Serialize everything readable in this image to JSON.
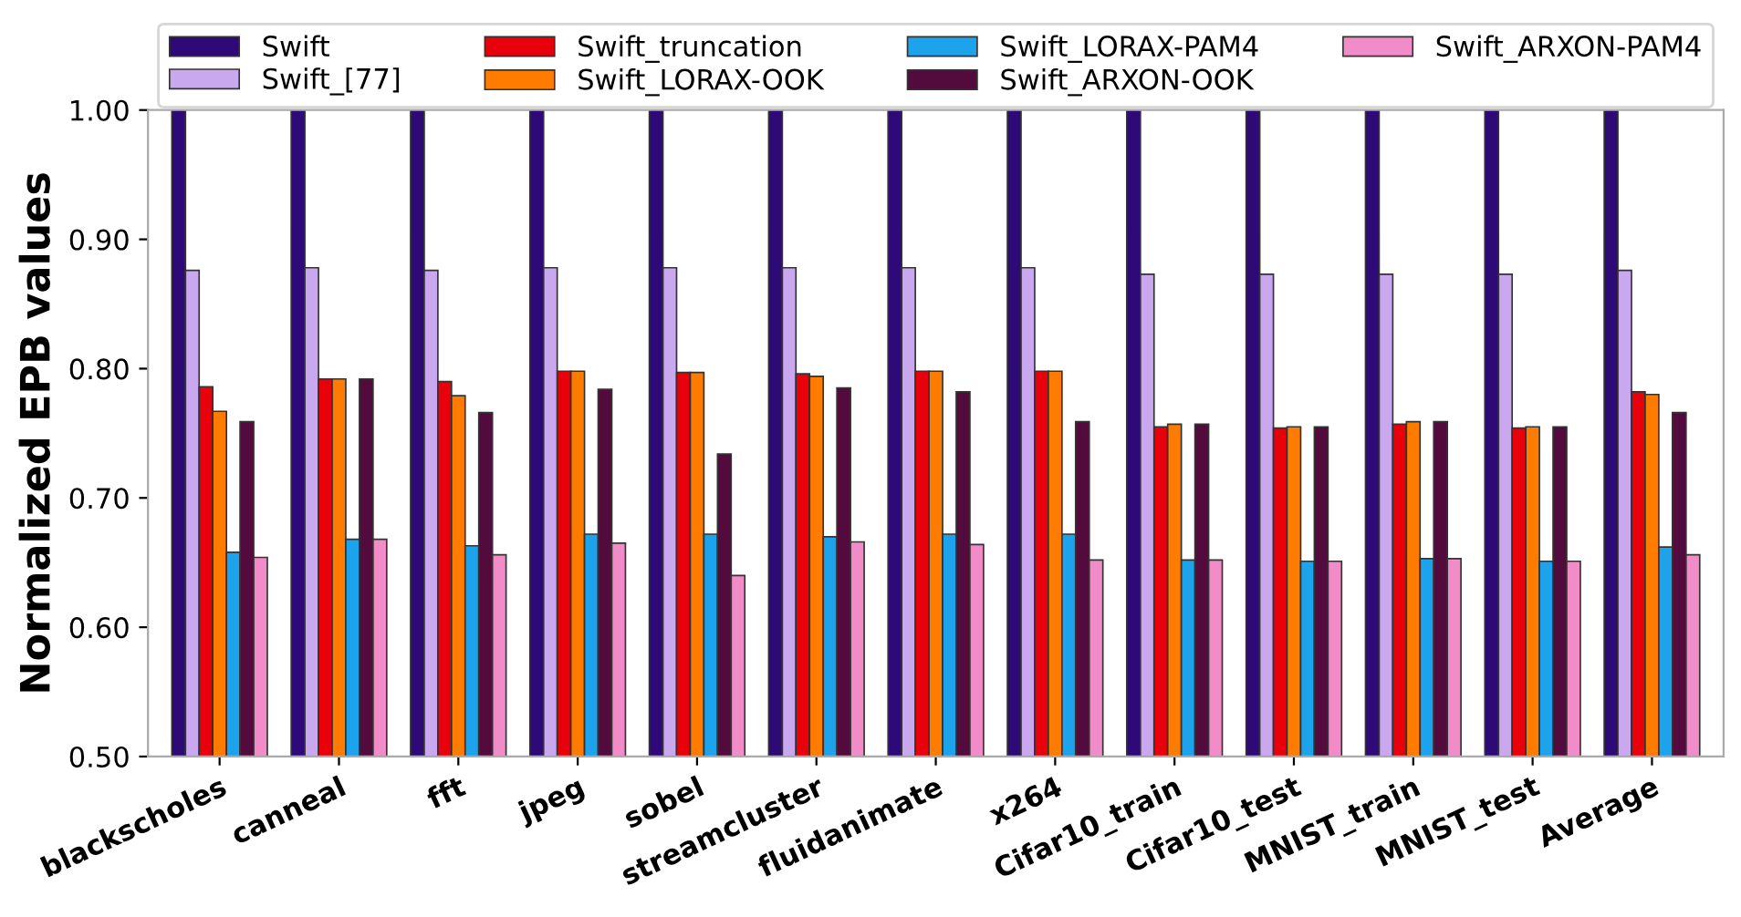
{
  "chart_data": {
    "type": "bar",
    "ylabel": "Normalized EPB values",
    "categories": [
      "blackscholes",
      "canneal",
      "fft",
      "jpeg",
      "sobel",
      "streamcluster",
      "fluidanimate",
      "x264",
      "Cifar10_train",
      "Cifar10_test",
      "MNIST_train",
      "MNIST_test",
      "Average"
    ],
    "series": [
      {
        "name": "Swift",
        "color": "#2e0a78",
        "values": [
          1.0,
          1.0,
          1.0,
          1.0,
          1.0,
          1.0,
          1.0,
          1.0,
          1.0,
          1.0,
          1.0,
          1.0,
          1.0
        ]
      },
      {
        "name": "Swift_[77]",
        "color": "#c9a8f0",
        "values": [
          0.876,
          0.878,
          0.876,
          0.878,
          0.878,
          0.878,
          0.878,
          0.878,
          0.873,
          0.873,
          0.873,
          0.873,
          0.876
        ]
      },
      {
        "name": "Swift_truncation",
        "color": "#e8000b",
        "values": [
          0.786,
          0.792,
          0.79,
          0.798,
          0.797,
          0.796,
          0.798,
          0.798,
          0.755,
          0.754,
          0.757,
          0.754,
          0.782
        ]
      },
      {
        "name": "Swift_LORAX-OOK",
        "color": "#ff7c00",
        "values": [
          0.767,
          0.792,
          0.779,
          0.798,
          0.797,
          0.794,
          0.798,
          0.798,
          0.757,
          0.755,
          0.759,
          0.755,
          0.78
        ]
      },
      {
        "name": "Swift_LORAX-PAM4",
        "color": "#1ca3ec",
        "values": [
          0.658,
          0.668,
          0.663,
          0.672,
          0.672,
          0.67,
          0.672,
          0.672,
          0.652,
          0.651,
          0.653,
          0.651,
          0.662
        ]
      },
      {
        "name": "Swift_ARXON-OOK",
        "color": "#530a3c",
        "values": [
          0.759,
          0.792,
          0.766,
          0.784,
          0.734,
          0.785,
          0.782,
          0.759,
          0.757,
          0.755,
          0.759,
          0.755,
          0.766
        ]
      },
      {
        "name": "Swift_ARXON-PAM4",
        "color": "#f28cc8",
        "values": [
          0.654,
          0.668,
          0.656,
          0.665,
          0.64,
          0.666,
          0.664,
          0.652,
          0.652,
          0.651,
          0.653,
          0.651,
          0.656
        ]
      }
    ],
    "ylim": [
      0.5,
      1.0
    ],
    "yticks": [
      {
        "value": 0.5,
        "label": "0.50"
      },
      {
        "value": 0.6,
        "label": "0.60"
      },
      {
        "value": 0.7,
        "label": "0.70"
      },
      {
        "value": 0.8,
        "label": "0.80"
      },
      {
        "value": 0.9,
        "label": "0.90"
      },
      {
        "value": 1.0,
        "label": "1.00"
      }
    ],
    "grid": false,
    "legend": "top"
  }
}
